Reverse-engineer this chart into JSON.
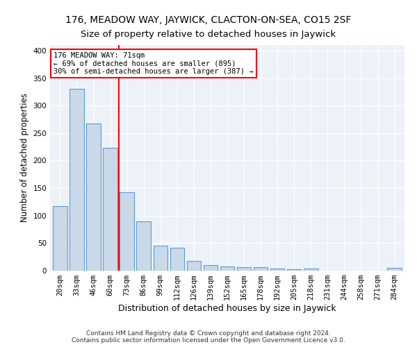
{
  "title": "176, MEADOW WAY, JAYWICK, CLACTON-ON-SEA, CO15 2SF",
  "subtitle": "Size of property relative to detached houses in Jaywick",
  "xlabel": "Distribution of detached houses by size in Jaywick",
  "ylabel": "Number of detached properties",
  "categories": [
    "20sqm",
    "33sqm",
    "46sqm",
    "60sqm",
    "73sqm",
    "86sqm",
    "99sqm",
    "112sqm",
    "126sqm",
    "139sqm",
    "152sqm",
    "165sqm",
    "178sqm",
    "192sqm",
    "205sqm",
    "218sqm",
    "231sqm",
    "244sqm",
    "258sqm",
    "271sqm",
    "284sqm"
  ],
  "values": [
    117,
    330,
    267,
    223,
    142,
    90,
    46,
    42,
    18,
    10,
    7,
    6,
    6,
    4,
    3,
    4,
    0,
    0,
    0,
    0,
    5
  ],
  "bar_color": "#c9d9e8",
  "bar_edge_color": "#5b9bd5",
  "vline_x_index": 4,
  "vline_color": "red",
  "annotation_text": "176 MEADOW WAY: 71sqm\n← 69% of detached houses are smaller (895)\n30% of semi-detached houses are larger (387) →",
  "annotation_box_color": "white",
  "annotation_box_edge_color": "red",
  "ylim": [
    0,
    410
  ],
  "yticks": [
    0,
    50,
    100,
    150,
    200,
    250,
    300,
    350,
    400
  ],
  "footnote": "Contains HM Land Registry data © Crown copyright and database right 2024.\nContains public sector information licensed under the Open Government Licence v3.0.",
  "title_fontsize": 10,
  "xlabel_fontsize": 9,
  "ylabel_fontsize": 8.5,
  "tick_fontsize": 7.5,
  "footnote_fontsize": 6.5
}
